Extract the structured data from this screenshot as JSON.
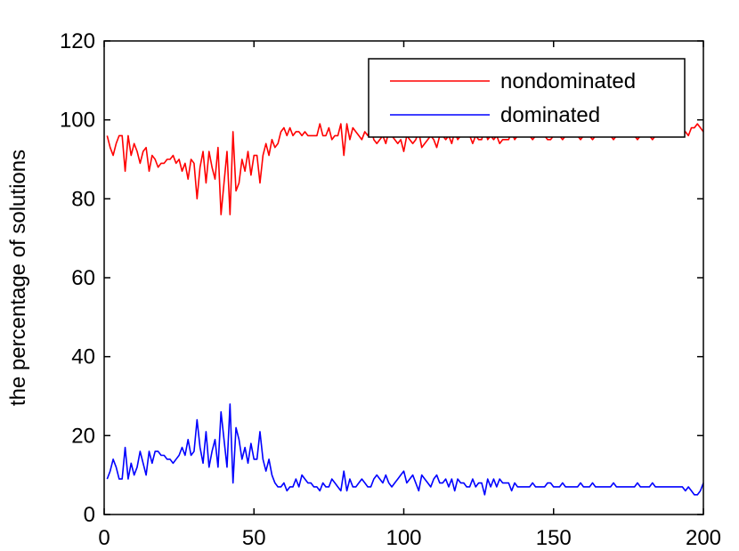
{
  "chart_data": {
    "type": "line",
    "title": "",
    "xlabel": "",
    "ylabel": "the percentage of solutions",
    "xlim": [
      0,
      200
    ],
    "ylim": [
      0,
      120
    ],
    "xticks": [
      0,
      50,
      100,
      150,
      200
    ],
    "yticks": [
      0,
      20,
      40,
      60,
      80,
      100,
      120
    ],
    "xtick_labels": [
      "0",
      "50",
      "100",
      "150",
      "200"
    ],
    "ytick_labels": [
      "0",
      "20",
      "40",
      "60",
      "80",
      "100",
      "120"
    ],
    "grid": false,
    "legend_position": "top-right",
    "x_start": 1,
    "x_step": 1,
    "series": [
      {
        "name": "nondominated",
        "color": "#ff0000",
        "values": [
          96,
          93,
          91,
          94,
          96,
          96,
          87,
          96,
          91,
          94,
          92,
          89,
          92,
          93,
          87,
          91,
          90,
          88,
          89,
          89,
          90,
          90,
          91,
          89,
          90,
          87,
          89,
          85,
          90,
          89,
          80,
          88,
          92,
          84,
          92,
          88,
          85,
          93,
          76,
          84,
          92,
          76,
          97,
          82,
          84,
          90,
          87,
          92,
          86,
          91,
          91,
          84,
          91,
          94,
          91,
          95,
          93,
          94,
          97,
          98,
          96,
          98,
          96,
          97,
          97,
          96,
          97,
          96,
          96,
          96,
          96,
          99,
          96,
          96,
          98,
          95,
          96,
          96,
          99,
          91,
          99,
          95,
          98,
          97,
          96,
          95,
          97,
          96,
          98,
          95,
          94,
          95,
          96,
          94,
          97,
          96,
          95,
          94,
          95,
          92,
          96,
          95,
          94,
          95,
          97,
          93,
          94,
          95,
          96,
          95,
          93,
          96,
          96,
          95,
          96,
          94,
          97,
          95,
          96,
          96,
          96,
          96,
          94,
          96,
          95,
          95,
          98,
          95,
          96,
          95,
          96,
          94,
          95,
          95,
          95,
          97,
          95,
          96,
          96,
          96,
          96,
          96,
          95,
          96,
          96,
          96,
          96,
          95,
          95,
          96,
          96,
          96,
          95,
          96,
          96,
          96,
          96,
          96,
          95,
          96,
          96,
          96,
          95,
          96,
          96,
          96,
          96,
          96,
          96,
          95,
          96,
          96,
          96,
          96,
          96,
          96,
          96,
          95,
          96,
          96,
          96,
          96,
          95,
          96,
          96,
          96,
          96,
          96,
          96,
          96,
          96,
          96,
          96,
          97,
          96,
          98,
          98,
          99,
          98,
          97
        ]
      },
      {
        "name": "dominated",
        "color": "#0000ff",
        "values": [
          9,
          11,
          14,
          12,
          9,
          9,
          17,
          9,
          13,
          10,
          12,
          16,
          13,
          10,
          16,
          13,
          16,
          16,
          15,
          15,
          14,
          14,
          13,
          14,
          15,
          17,
          15,
          19,
          15,
          16,
          24,
          17,
          13,
          21,
          12,
          16,
          19,
          12,
          26,
          19,
          12,
          28,
          8,
          22,
          19,
          14,
          17,
          13,
          18,
          14,
          14,
          21,
          14,
          11,
          14,
          10,
          8,
          7,
          7,
          8,
          6,
          7,
          7,
          9,
          7,
          10,
          9,
          8,
          8,
          7,
          7,
          6,
          8,
          7,
          7,
          9,
          8,
          7,
          6,
          11,
          6,
          9,
          7,
          7,
          8,
          9,
          8,
          7,
          7,
          9,
          10,
          9,
          8,
          10,
          8,
          7,
          8,
          9,
          10,
          11,
          8,
          9,
          10,
          8,
          6,
          10,
          9,
          8,
          7,
          9,
          10,
          8,
          8,
          9,
          7,
          9,
          6,
          9,
          8,
          8,
          7,
          7,
          9,
          7,
          8,
          8,
          5,
          9,
          7,
          9,
          7,
          9,
          8,
          8,
          8,
          6,
          8,
          7,
          7,
          7,
          7,
          7,
          8,
          7,
          7,
          7,
          7,
          8,
          8,
          7,
          7,
          7,
          8,
          7,
          7,
          7,
          7,
          7,
          8,
          7,
          7,
          7,
          8,
          7,
          7,
          7,
          7,
          7,
          7,
          8,
          7,
          7,
          7,
          7,
          7,
          7,
          7,
          8,
          7,
          7,
          7,
          7,
          8,
          7,
          7,
          7,
          7,
          7,
          7,
          7,
          7,
          7,
          7,
          6,
          7,
          6,
          5,
          5,
          6,
          8
        ]
      }
    ]
  }
}
